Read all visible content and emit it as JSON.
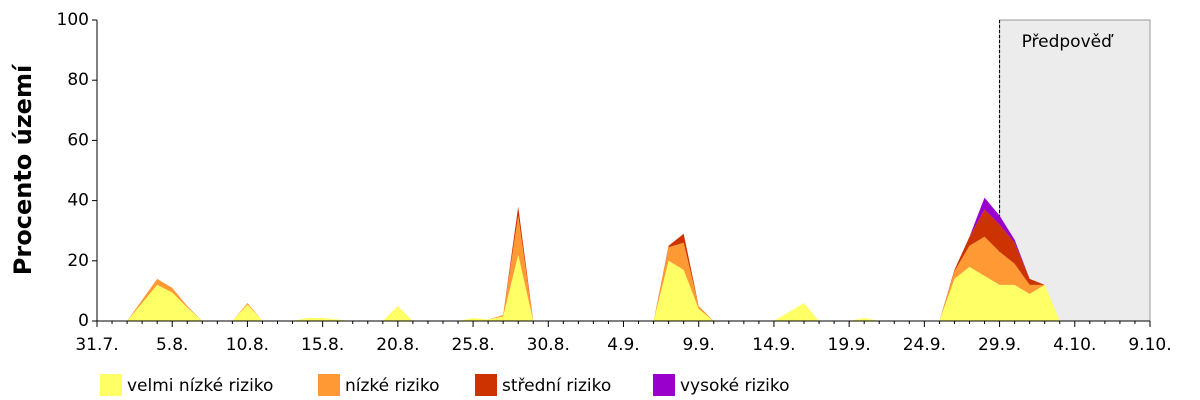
{
  "chart_data": {
    "type": "stacked-area",
    "ylabel": "Procento území",
    "ylim": [
      0,
      100
    ],
    "yticks": [
      0,
      20,
      40,
      60,
      80,
      100
    ],
    "categories": [
      "31.7.",
      null,
      null,
      null,
      null,
      "5.8.",
      null,
      null,
      null,
      null,
      "10.8.",
      null,
      null,
      null,
      null,
      "15.8.",
      null,
      null,
      null,
      null,
      "20.8.",
      null,
      null,
      null,
      null,
      "25.8.",
      null,
      null,
      null,
      null,
      "30.8.",
      null,
      null,
      null,
      null,
      "4.9.",
      null,
      null,
      null,
      null,
      "9.9.",
      null,
      null,
      null,
      null,
      "14.9.",
      null,
      null,
      null,
      null,
      "19.9.",
      null,
      null,
      null,
      null,
      "24.9.",
      null,
      null,
      null,
      null,
      "29.9.",
      null,
      null,
      null,
      null,
      "4.10.",
      null,
      null,
      null,
      null,
      "9.10."
    ],
    "forecast_label": "Předpověď",
    "forecast_start": "29.9.",
    "series": [
      {
        "name": "velmi nízké riziko",
        "color": "#ffff66",
        "values": [
          0,
          0,
          0,
          6,
          12,
          9.5,
          4.5,
          0,
          0,
          0,
          5.5,
          0,
          0,
          0,
          1,
          1,
          0.5,
          0,
          0,
          0,
          5,
          0,
          0,
          0,
          0,
          1,
          0.5,
          1.5,
          22,
          0,
          0,
          0,
          0,
          0,
          0,
          0,
          0,
          0,
          20,
          17,
          4,
          0,
          0,
          0,
          0,
          0,
          3,
          6,
          0,
          0,
          0,
          1,
          0,
          0,
          0,
          0,
          0,
          14,
          18,
          15,
          12,
          12,
          9,
          12,
          0,
          0,
          0,
          0,
          0,
          0,
          0
        ]
      },
      {
        "name": "nízké riziko",
        "color": "#ff9933",
        "values": [
          0,
          0,
          0,
          1,
          2,
          1.5,
          0.5,
          0,
          0,
          0,
          0.5,
          0,
          0,
          0,
          0,
          0,
          0,
          0,
          0,
          0,
          0,
          0,
          0,
          0,
          0,
          0,
          0,
          0.5,
          13,
          0,
          0,
          0,
          0,
          0,
          0,
          0,
          0,
          0,
          4.5,
          9,
          1,
          0,
          0,
          0,
          0,
          0,
          0,
          0,
          0,
          0,
          0,
          0,
          0,
          0,
          0,
          0,
          0,
          2.5,
          7,
          13,
          11,
          7,
          3,
          0,
          0,
          0,
          0,
          0,
          0,
          0,
          0
        ]
      },
      {
        "name": "střední riziko",
        "color": "#cc3300",
        "values": [
          0,
          0,
          0,
          0,
          0,
          0,
          0,
          0,
          0,
          0,
          0,
          0,
          0,
          0,
          0,
          0,
          0,
          0,
          0,
          0,
          0,
          0,
          0,
          0,
          0,
          0,
          0,
          0,
          3,
          0,
          0,
          0,
          0,
          0,
          0,
          0,
          0,
          0,
          0.5,
          3,
          0,
          0,
          0,
          0,
          0,
          0,
          0,
          0,
          0,
          0,
          0,
          0,
          0,
          0,
          0,
          0,
          0,
          0.5,
          3,
          9,
          9,
          7,
          2,
          0,
          0,
          0,
          0,
          0,
          0,
          0,
          0
        ]
      },
      {
        "name": "vysoké riziko",
        "color": "#9900cc",
        "values": [
          0,
          0,
          0,
          0,
          0,
          0,
          0,
          0,
          0,
          0,
          0,
          0,
          0,
          0,
          0,
          0,
          0,
          0,
          0,
          0,
          0,
          0,
          0,
          0,
          0,
          0,
          0,
          0,
          0,
          0,
          0,
          0,
          0,
          0,
          0,
          0,
          0,
          0,
          0,
          0,
          0,
          0,
          0,
          0,
          0,
          0,
          0,
          0,
          0,
          0,
          0,
          0,
          0,
          0,
          0,
          0,
          0,
          0,
          0,
          4,
          3,
          1,
          0,
          0,
          0,
          0,
          0,
          0,
          0,
          0,
          0
        ]
      }
    ]
  }
}
